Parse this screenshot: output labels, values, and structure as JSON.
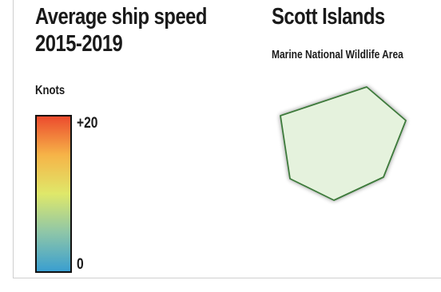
{
  "legend": {
    "title_line1": "Average ship speed",
    "title_line2": "2015-2019",
    "unit": "Knots",
    "max_label": "+20",
    "min_label": "0",
    "scale": {
      "min": 0,
      "max": 20,
      "colors": [
        "#3a9fd0",
        "#8ec6a8",
        "#dfe86a",
        "#f6b448",
        "#ec4b2e"
      ]
    }
  },
  "map": {
    "title": "Scott Islands",
    "subtitle": "Marine National Wildlife Area",
    "area_fill": "#e5f2dd",
    "area_stroke": "#3d7a3a"
  }
}
